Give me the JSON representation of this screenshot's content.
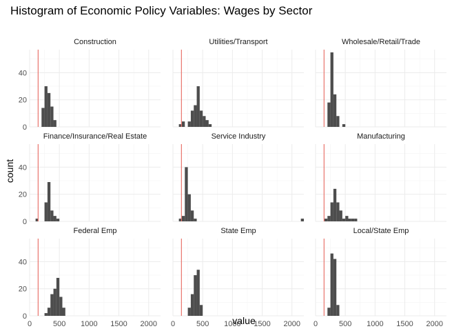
{
  "chart_data": {
    "type": "histogram",
    "title": "Histogram of Economic Policy Variables: Wages by Sector",
    "xlabel": "value",
    "ylabel": "count",
    "xlim": [
      0,
      2200
    ],
    "ylim": [
      0,
      57
    ],
    "x_ticks": [
      0,
      500,
      1000,
      1500,
      2000
    ],
    "y_ticks": [
      0,
      20,
      40
    ],
    "bin_width": 50,
    "reference_line": {
      "x": 143,
      "color": "#e8736b"
    },
    "bar_color": "#4d4d4d",
    "facets": [
      {
        "name": "Construction",
        "bins": [
          {
            "x0": 200,
            "count": 14
          },
          {
            "x0": 250,
            "count": 30
          },
          {
            "x0": 300,
            "count": 25
          },
          {
            "x0": 350,
            "count": 15
          },
          {
            "x0": 400,
            "count": 5
          }
        ]
      },
      {
        "name": "Utilities/Transport",
        "bins": [
          {
            "x0": 100,
            "count": 2
          },
          {
            "x0": 150,
            "count": 4
          },
          {
            "x0": 250,
            "count": 4
          },
          {
            "x0": 300,
            "count": 12
          },
          {
            "x0": 350,
            "count": 16
          },
          {
            "x0": 400,
            "count": 30
          },
          {
            "x0": 450,
            "count": 12
          },
          {
            "x0": 500,
            "count": 8
          },
          {
            "x0": 550,
            "count": 5
          },
          {
            "x0": 600,
            "count": 2
          }
        ]
      },
      {
        "name": "Wholesale/Retail/Trade",
        "bins": [
          {
            "x0": 200,
            "count": 18
          },
          {
            "x0": 250,
            "count": 55
          },
          {
            "x0": 300,
            "count": 24
          },
          {
            "x0": 350,
            "count": 8
          },
          {
            "x0": 450,
            "count": 2
          }
        ]
      },
      {
        "name": "Finance/Insurance/Real Estate",
        "bins": [
          {
            "x0": 100,
            "count": 2
          },
          {
            "x0": 250,
            "count": 14
          },
          {
            "x0": 300,
            "count": 29
          },
          {
            "x0": 350,
            "count": 8
          },
          {
            "x0": 400,
            "count": 4
          },
          {
            "x0": 450,
            "count": 2
          }
        ]
      },
      {
        "name": "Service Industry",
        "bins": [
          {
            "x0": 100,
            "count": 2
          },
          {
            "x0": 150,
            "count": 4
          },
          {
            "x0": 200,
            "count": 40
          },
          {
            "x0": 250,
            "count": 20
          },
          {
            "x0": 300,
            "count": 8
          },
          {
            "x0": 350,
            "count": 2
          },
          {
            "x0": 2150,
            "count": 2
          }
        ]
      },
      {
        "name": "Manufacturing",
        "bins": [
          {
            "x0": 150,
            "count": 2
          },
          {
            "x0": 200,
            "count": 4
          },
          {
            "x0": 250,
            "count": 14
          },
          {
            "x0": 300,
            "count": 24
          },
          {
            "x0": 350,
            "count": 14
          },
          {
            "x0": 400,
            "count": 8
          },
          {
            "x0": 450,
            "count": 2
          },
          {
            "x0": 500,
            "count": 4
          },
          {
            "x0": 550,
            "count": 2
          },
          {
            "x0": 600,
            "count": 2
          },
          {
            "x0": 650,
            "count": 2
          }
        ]
      },
      {
        "name": "Federal Emp",
        "bins": [
          {
            "x0": 250,
            "count": 2
          },
          {
            "x0": 300,
            "count": 6
          },
          {
            "x0": 350,
            "count": 16
          },
          {
            "x0": 400,
            "count": 20
          },
          {
            "x0": 450,
            "count": 28
          },
          {
            "x0": 500,
            "count": 14
          },
          {
            "x0": 550,
            "count": 6
          }
        ]
      },
      {
        "name": "State Emp",
        "bins": [
          {
            "x0": 250,
            "count": 6
          },
          {
            "x0": 300,
            "count": 16
          },
          {
            "x0": 350,
            "count": 30
          },
          {
            "x0": 400,
            "count": 34
          },
          {
            "x0": 450,
            "count": 8
          }
        ]
      },
      {
        "name": "Local/State Emp",
        "bins": [
          {
            "x0": 200,
            "count": 6
          },
          {
            "x0": 250,
            "count": 46
          },
          {
            "x0": 300,
            "count": 42
          },
          {
            "x0": 350,
            "count": 8
          }
        ]
      }
    ]
  }
}
